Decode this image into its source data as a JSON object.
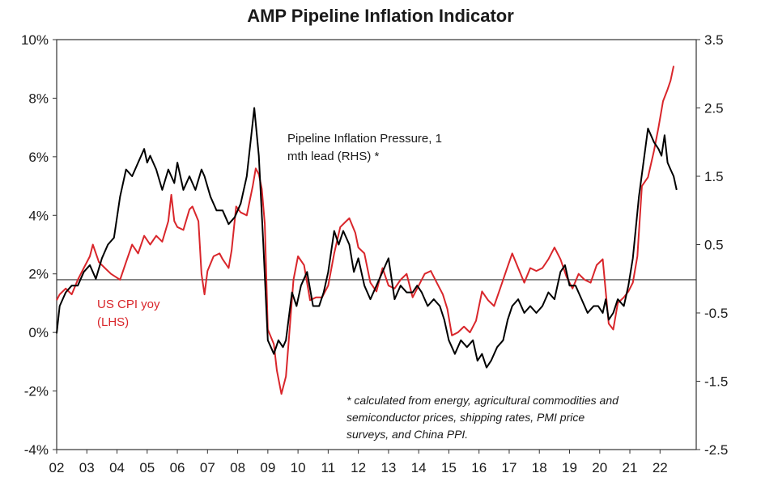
{
  "chart_data": {
    "type": "line",
    "title": "AMP Pipeline Inflation Indicator",
    "xlabel": "",
    "x_ticks": [
      "02",
      "03",
      "04",
      "05",
      "06",
      "07",
      "08",
      "09",
      "10",
      "11",
      "12",
      "13",
      "14",
      "15",
      "16",
      "17",
      "18",
      "19",
      "20",
      "21",
      "22"
    ],
    "x_range": [
      2002.0,
      2023.2
    ],
    "y_left": {
      "range": [
        -4,
        10
      ],
      "ticks": [
        -4,
        -2,
        0,
        2,
        4,
        6,
        8,
        10
      ],
      "tick_labels": [
        "-4%",
        "-2%",
        "0%",
        "2%",
        "4%",
        "6%",
        "8%",
        "10%"
      ]
    },
    "y_right": {
      "range": [
        -2.5,
        3.5
      ],
      "ticks": [
        -2.5,
        -1.5,
        -0.5,
        0.5,
        1.5,
        2.5,
        3.5
      ],
      "tick_labels": [
        "-2.5",
        "-1.5",
        "-0.5",
        "0.5",
        "1.5",
        "2.5",
        "3.5"
      ]
    },
    "reference_line": {
      "axis": "left",
      "value": 1.8
    },
    "series": [
      {
        "name": "US CPI yoy (LHS)",
        "axis": "left",
        "color": "#d9262b",
        "points": [
          [
            2002.0,
            1.1
          ],
          [
            2002.1,
            1.3
          ],
          [
            2002.3,
            1.5
          ],
          [
            2002.5,
            1.3
          ],
          [
            2002.7,
            1.8
          ],
          [
            2002.9,
            2.2
          ],
          [
            2003.1,
            2.6
          ],
          [
            2003.2,
            3.0
          ],
          [
            2003.4,
            2.4
          ],
          [
            2003.6,
            2.2
          ],
          [
            2003.8,
            2.0
          ],
          [
            2003.95,
            1.9
          ],
          [
            2004.1,
            1.8
          ],
          [
            2004.3,
            2.4
          ],
          [
            2004.5,
            3.0
          ],
          [
            2004.7,
            2.7
          ],
          [
            2004.9,
            3.3
          ],
          [
            2005.1,
            3.0
          ],
          [
            2005.3,
            3.3
          ],
          [
            2005.5,
            3.1
          ],
          [
            2005.7,
            3.8
          ],
          [
            2005.8,
            4.7
          ],
          [
            2005.9,
            3.8
          ],
          [
            2006.0,
            3.6
          ],
          [
            2006.2,
            3.5
          ],
          [
            2006.4,
            4.2
          ],
          [
            2006.5,
            4.3
          ],
          [
            2006.7,
            3.8
          ],
          [
            2006.8,
            2.0
          ],
          [
            2006.9,
            1.3
          ],
          [
            2007.0,
            2.1
          ],
          [
            2007.2,
            2.6
          ],
          [
            2007.4,
            2.7
          ],
          [
            2007.5,
            2.5
          ],
          [
            2007.7,
            2.2
          ],
          [
            2007.8,
            2.8
          ],
          [
            2007.95,
            4.3
          ],
          [
            2008.1,
            4.1
          ],
          [
            2008.3,
            4.0
          ],
          [
            2008.5,
            5.0
          ],
          [
            2008.6,
            5.6
          ],
          [
            2008.7,
            5.4
          ],
          [
            2008.8,
            4.9
          ],
          [
            2008.9,
            3.7
          ],
          [
            2009.0,
            0.1
          ],
          [
            2009.2,
            -0.4
          ],
          [
            2009.3,
            -1.3
          ],
          [
            2009.45,
            -2.1
          ],
          [
            2009.6,
            -1.5
          ],
          [
            2009.7,
            -0.2
          ],
          [
            2009.85,
            1.8
          ],
          [
            2010.0,
            2.6
          ],
          [
            2010.2,
            2.3
          ],
          [
            2010.4,
            1.1
          ],
          [
            2010.6,
            1.2
          ],
          [
            2010.8,
            1.2
          ],
          [
            2011.0,
            1.6
          ],
          [
            2011.2,
            2.7
          ],
          [
            2011.4,
            3.6
          ],
          [
            2011.6,
            3.8
          ],
          [
            2011.7,
            3.9
          ],
          [
            2011.9,
            3.4
          ],
          [
            2012.0,
            2.9
          ],
          [
            2012.2,
            2.7
          ],
          [
            2012.4,
            1.7
          ],
          [
            2012.6,
            1.4
          ],
          [
            2012.8,
            2.2
          ],
          [
            2013.0,
            1.6
          ],
          [
            2013.2,
            1.5
          ],
          [
            2013.4,
            1.8
          ],
          [
            2013.6,
            2.0
          ],
          [
            2013.8,
            1.2
          ],
          [
            2014.0,
            1.6
          ],
          [
            2014.2,
            2.0
          ],
          [
            2014.4,
            2.1
          ],
          [
            2014.6,
            1.7
          ],
          [
            2014.8,
            1.3
          ],
          [
            2014.95,
            0.8
          ],
          [
            2015.1,
            -0.1
          ],
          [
            2015.3,
            0.0
          ],
          [
            2015.5,
            0.2
          ],
          [
            2015.7,
            0.0
          ],
          [
            2015.9,
            0.4
          ],
          [
            2016.1,
            1.4
          ],
          [
            2016.3,
            1.1
          ],
          [
            2016.5,
            0.9
          ],
          [
            2016.7,
            1.5
          ],
          [
            2016.9,
            2.1
          ],
          [
            2017.1,
            2.7
          ],
          [
            2017.3,
            2.2
          ],
          [
            2017.5,
            1.7
          ],
          [
            2017.7,
            2.2
          ],
          [
            2017.9,
            2.1
          ],
          [
            2018.1,
            2.2
          ],
          [
            2018.3,
            2.5
          ],
          [
            2018.5,
            2.9
          ],
          [
            2018.7,
            2.5
          ],
          [
            2018.9,
            1.9
          ],
          [
            2019.1,
            1.5
          ],
          [
            2019.3,
            2.0
          ],
          [
            2019.5,
            1.8
          ],
          [
            2019.7,
            1.7
          ],
          [
            2019.9,
            2.3
          ],
          [
            2020.1,
            2.5
          ],
          [
            2020.3,
            0.3
          ],
          [
            2020.45,
            0.1
          ],
          [
            2020.6,
            1.0
          ],
          [
            2020.8,
            1.2
          ],
          [
            2020.95,
            1.4
          ],
          [
            2021.1,
            1.7
          ],
          [
            2021.25,
            2.6
          ],
          [
            2021.4,
            5.0
          ],
          [
            2021.6,
            5.3
          ],
          [
            2021.8,
            6.2
          ],
          [
            2021.95,
            7.0
          ],
          [
            2022.1,
            7.9
          ],
          [
            2022.25,
            8.3
          ],
          [
            2022.35,
            8.6
          ],
          [
            2022.45,
            9.1
          ]
        ]
      },
      {
        "name": "Pipeline Inflation Pressure, 1 mth lead (RHS) *",
        "axis": "right",
        "color": "#000000",
        "points": [
          [
            2002.0,
            -0.8
          ],
          [
            2002.1,
            -0.4
          ],
          [
            2002.3,
            -0.2
          ],
          [
            2002.5,
            -0.1
          ],
          [
            2002.7,
            -0.1
          ],
          [
            2002.9,
            0.1
          ],
          [
            2003.1,
            0.2
          ],
          [
            2003.3,
            0.0
          ],
          [
            2003.5,
            0.3
          ],
          [
            2003.7,
            0.5
          ],
          [
            2003.9,
            0.6
          ],
          [
            2004.1,
            1.2
          ],
          [
            2004.3,
            1.6
          ],
          [
            2004.5,
            1.5
          ],
          [
            2004.7,
            1.7
          ],
          [
            2004.9,
            1.9
          ],
          [
            2005.0,
            1.7
          ],
          [
            2005.1,
            1.8
          ],
          [
            2005.3,
            1.6
          ],
          [
            2005.5,
            1.3
          ],
          [
            2005.7,
            1.6
          ],
          [
            2005.9,
            1.4
          ],
          [
            2006.0,
            1.7
          ],
          [
            2006.2,
            1.3
          ],
          [
            2006.4,
            1.5
          ],
          [
            2006.6,
            1.3
          ],
          [
            2006.8,
            1.6
          ],
          [
            2006.9,
            1.5
          ],
          [
            2007.1,
            1.2
          ],
          [
            2007.3,
            1.0
          ],
          [
            2007.5,
            1.0
          ],
          [
            2007.7,
            0.8
          ],
          [
            2007.9,
            0.9
          ],
          [
            2008.1,
            1.1
          ],
          [
            2008.3,
            1.5
          ],
          [
            2008.45,
            2.1
          ],
          [
            2008.55,
            2.5
          ],
          [
            2008.7,
            1.8
          ],
          [
            2008.85,
            0.5
          ],
          [
            2009.0,
            -0.9
          ],
          [
            2009.1,
            -1.0
          ],
          [
            2009.2,
            -1.1
          ],
          [
            2009.35,
            -0.9
          ],
          [
            2009.5,
            -1.0
          ],
          [
            2009.6,
            -0.9
          ],
          [
            2009.8,
            -0.2
          ],
          [
            2009.95,
            -0.4
          ],
          [
            2010.1,
            -0.1
          ],
          [
            2010.3,
            0.1
          ],
          [
            2010.5,
            -0.4
          ],
          [
            2010.7,
            -0.4
          ],
          [
            2010.85,
            -0.2
          ],
          [
            2011.0,
            0.1
          ],
          [
            2011.2,
            0.7
          ],
          [
            2011.35,
            0.5
          ],
          [
            2011.5,
            0.7
          ],
          [
            2011.7,
            0.5
          ],
          [
            2011.85,
            0.1
          ],
          [
            2012.0,
            0.3
          ],
          [
            2012.2,
            -0.1
          ],
          [
            2012.4,
            -0.3
          ],
          [
            2012.6,
            -0.1
          ],
          [
            2012.8,
            0.1
          ],
          [
            2013.0,
            0.3
          ],
          [
            2013.2,
            -0.3
          ],
          [
            2013.4,
            -0.1
          ],
          [
            2013.6,
            -0.2
          ],
          [
            2013.8,
            -0.2
          ],
          [
            2013.95,
            -0.1
          ],
          [
            2014.1,
            -0.2
          ],
          [
            2014.3,
            -0.4
          ],
          [
            2014.5,
            -0.3
          ],
          [
            2014.7,
            -0.4
          ],
          [
            2014.85,
            -0.6
          ],
          [
            2015.0,
            -0.9
          ],
          [
            2015.2,
            -1.1
          ],
          [
            2015.4,
            -0.9
          ],
          [
            2015.6,
            -1.0
          ],
          [
            2015.8,
            -0.9
          ],
          [
            2015.95,
            -1.2
          ],
          [
            2016.1,
            -1.1
          ],
          [
            2016.25,
            -1.3
          ],
          [
            2016.4,
            -1.2
          ],
          [
            2016.6,
            -1.0
          ],
          [
            2016.8,
            -0.9
          ],
          [
            2016.95,
            -0.6
          ],
          [
            2017.1,
            -0.4
          ],
          [
            2017.3,
            -0.3
          ],
          [
            2017.5,
            -0.5
          ],
          [
            2017.7,
            -0.4
          ],
          [
            2017.9,
            -0.5
          ],
          [
            2018.1,
            -0.4
          ],
          [
            2018.3,
            -0.2
          ],
          [
            2018.5,
            -0.3
          ],
          [
            2018.7,
            0.1
          ],
          [
            2018.85,
            0.2
          ],
          [
            2019.0,
            -0.1
          ],
          [
            2019.2,
            -0.1
          ],
          [
            2019.4,
            -0.3
          ],
          [
            2019.6,
            -0.5
          ],
          [
            2019.8,
            -0.4
          ],
          [
            2019.95,
            -0.4
          ],
          [
            2020.1,
            -0.5
          ],
          [
            2020.2,
            -0.3
          ],
          [
            2020.3,
            -0.6
          ],
          [
            2020.45,
            -0.5
          ],
          [
            2020.6,
            -0.3
          ],
          [
            2020.8,
            -0.4
          ],
          [
            2020.95,
            -0.1
          ],
          [
            2021.1,
            0.3
          ],
          [
            2021.3,
            1.2
          ],
          [
            2021.45,
            1.7
          ],
          [
            2021.6,
            2.2
          ],
          [
            2021.8,
            2.0
          ],
          [
            2021.95,
            1.9
          ],
          [
            2022.05,
            1.8
          ],
          [
            2022.15,
            2.1
          ],
          [
            2022.25,
            1.7
          ],
          [
            2022.35,
            1.6
          ],
          [
            2022.45,
            1.5
          ],
          [
            2022.55,
            1.3
          ]
        ]
      }
    ],
    "annotations": {
      "black_label_lines": [
        "Pipeline Inflation Pressure, 1",
        "mth lead (RHS) *"
      ],
      "red_label_lines": [
        "US CPI yoy",
        "(LHS)"
      ],
      "footnote_lines": [
        "* calculated from energy, agricultural commodities and",
        "semiconductor prices, shipping rates, PMI price",
        "surveys, and China PPI."
      ]
    },
    "grid": false,
    "legend": "none"
  }
}
